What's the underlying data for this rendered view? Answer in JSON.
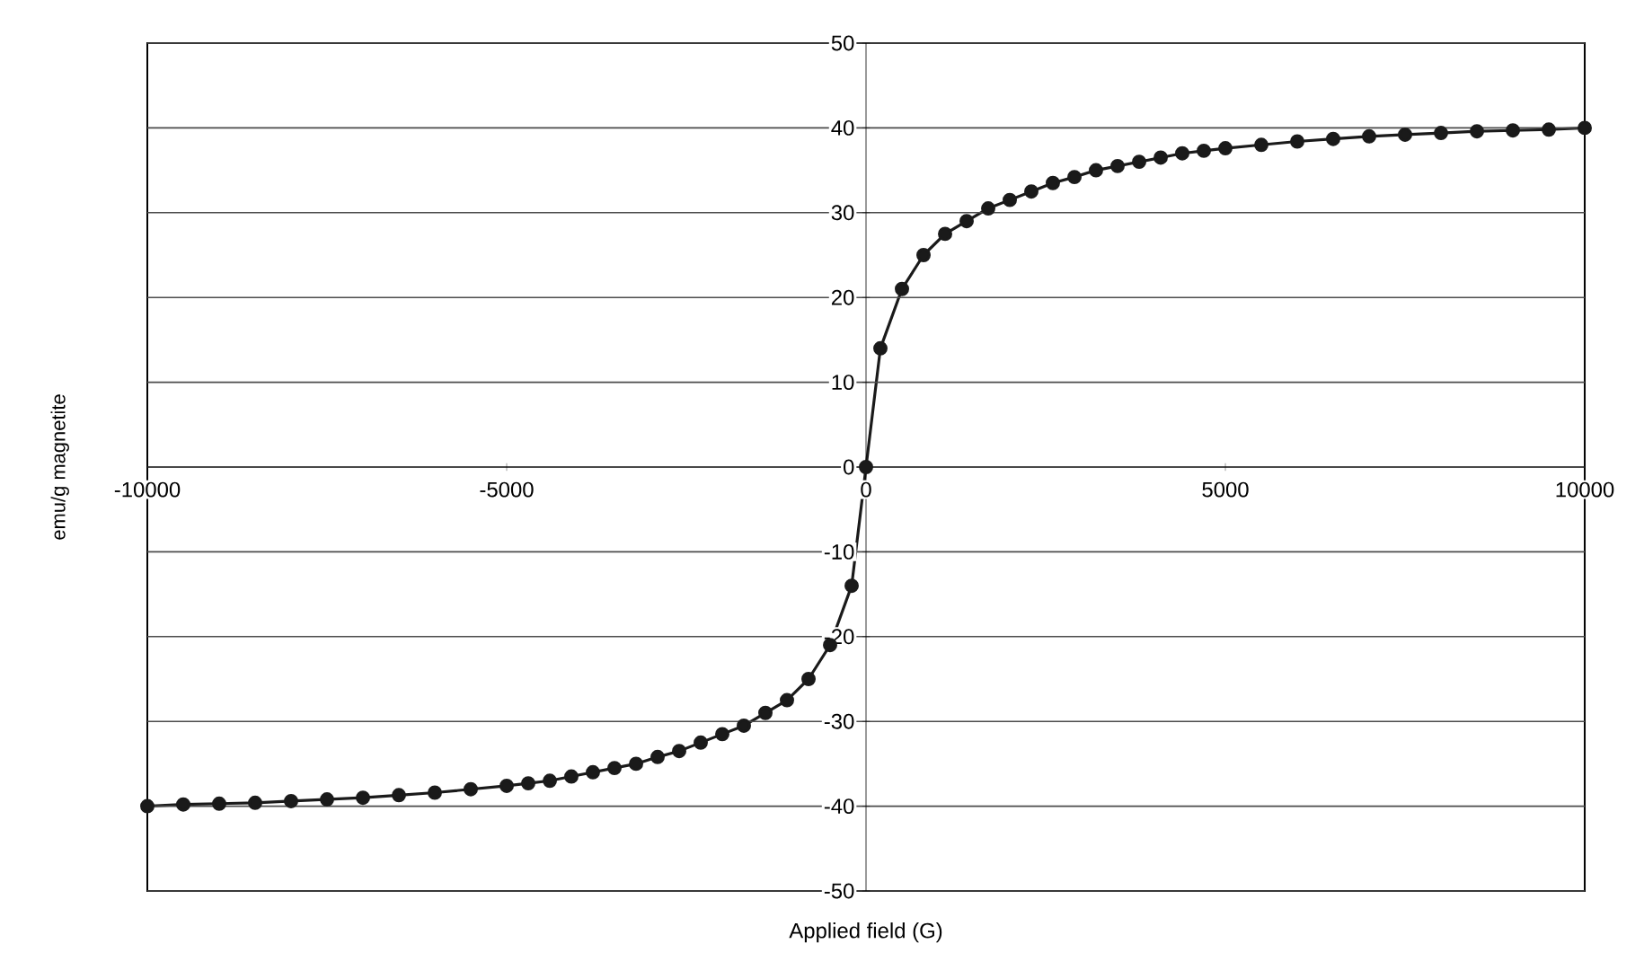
{
  "chart_data": {
    "type": "line",
    "xlabel": "Applied field (G)",
    "ylabel": "emu/g magnetite",
    "series": [
      {
        "color": "#1a1a1a",
        "x": [
          -10000,
          -9500,
          -9000,
          -8500,
          -8000,
          -7500,
          -7000,
          -6500,
          -6000,
          -5500,
          -5000,
          -4700,
          -4400,
          -4100,
          -3800,
          -3500,
          -3200,
          -2900,
          -2600,
          -2300,
          -2000,
          -1700,
          -1400,
          -1100,
          -800,
          -500,
          -200,
          0,
          200,
          500,
          800,
          1100,
          1400,
          1700,
          2000,
          2300,
          2600,
          2900,
          3200,
          3500,
          3800,
          4100,
          4400,
          4700,
          5000,
          5500,
          6000,
          6500,
          7000,
          7500,
          8000,
          8500,
          9000,
          9500,
          10000
        ],
        "values": [
          -40,
          -39.8,
          -39.7,
          -39.6,
          -39.4,
          -39.2,
          -39,
          -38.7,
          -38.4,
          -38,
          -37.6,
          -37.3,
          -37,
          -36.5,
          -36,
          -35.5,
          -35,
          -34.2,
          -33.5,
          -32.5,
          -31.5,
          -30.5,
          -29,
          -27.5,
          -25,
          -21,
          -14,
          0,
          14,
          21,
          25,
          27.5,
          29,
          30.5,
          31.5,
          32.5,
          33.5,
          34.2,
          35,
          35.5,
          36,
          36.5,
          37,
          37.3,
          37.6,
          38,
          38.4,
          38.7,
          39,
          39.2,
          39.4,
          39.6,
          39.7,
          39.8,
          40
        ]
      }
    ],
    "xlim": [
      -10000,
      10000
    ],
    "ylim": [
      -50,
      50
    ],
    "xticks": [
      -10000,
      -5000,
      0,
      5000,
      10000
    ],
    "yticks": [
      -50,
      -40,
      -30,
      -20,
      -10,
      0,
      10,
      20,
      30,
      40,
      50
    ],
    "grid": "y",
    "marker": "circle",
    "line_style": "solid"
  }
}
